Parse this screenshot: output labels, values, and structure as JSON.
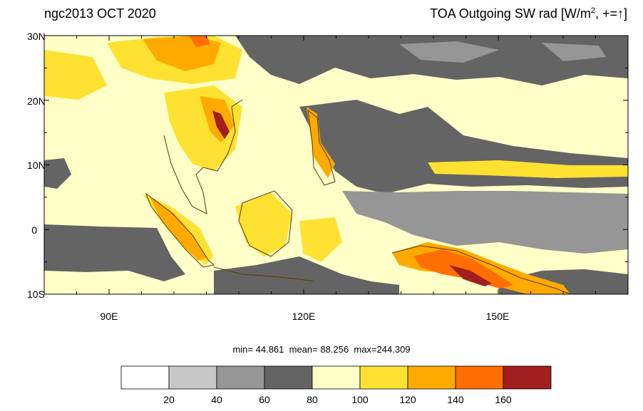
{
  "header": {
    "left_title": "ngc2013 OCT 2020",
    "right_title_prefix": "TOA Outgoing SW rad [W/m",
    "right_title_sup": "2",
    "right_title_suffix": ", +=",
    "right_title_arrow": "↑",
    "right_title_end": "]"
  },
  "map": {
    "lat_labels": [
      "30N",
      "20N",
      "10N",
      "0",
      "10S"
    ],
    "lon_labels": [
      "90E",
      "120E",
      "150E"
    ],
    "lat_values": [
      30,
      20,
      10,
      0,
      -10
    ],
    "lon_values": [
      90,
      120,
      150
    ],
    "lon_range": [
      80,
      170
    ],
    "lat_range": [
      -10,
      30
    ]
  },
  "stats": {
    "min_label": "min=",
    "min": "44.861",
    "mean_label": "mean=",
    "mean": "88.256",
    "max_label": "max=",
    "max": "244.309"
  },
  "colorbar": {
    "colors": [
      "#ffffff",
      "#c8c8c8",
      "#969696",
      "#646464",
      "#ffffc8",
      "#ffe132",
      "#ffaa00",
      "#ff6e00",
      "#a01e1e"
    ],
    "labels": [
      "20",
      "40",
      "60",
      "80",
      "100",
      "120",
      "140",
      "160"
    ]
  }
}
